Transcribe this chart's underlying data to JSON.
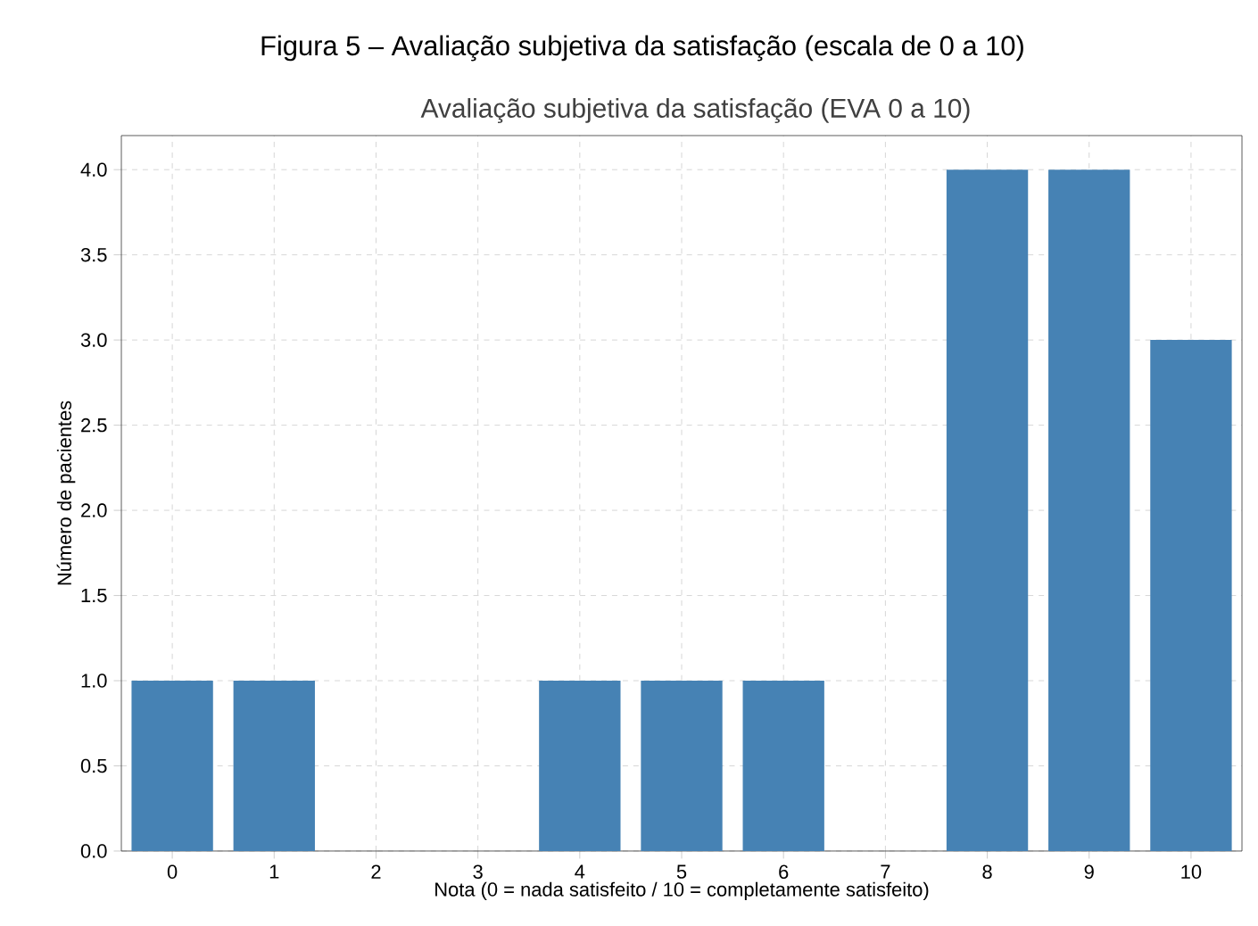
{
  "chart_data": {
    "type": "bar",
    "title": "Figura 5 – Avaliação subjetiva da satisfação (escala de 0 a 10)",
    "subtitle": "Avaliação subjetiva da satisfação (EVA 0 a 10)",
    "xlabel": "Nota (0 = nada satisfeito / 10 = completamente satisfeito)",
    "ylabel": "Número de pacientes",
    "categories": [
      "0",
      "1",
      "2",
      "3",
      "4",
      "5",
      "6",
      "7",
      "8",
      "9",
      "10"
    ],
    "values": [
      1,
      1,
      0,
      0,
      1,
      1,
      1,
      0,
      4,
      4,
      3
    ],
    "color": "#4682b4",
    "ylim": [
      0,
      4.2
    ],
    "yticks": [
      {
        "value": 0,
        "label": "0.0"
      },
      {
        "value": 0.5,
        "label": "0.5"
      },
      {
        "value": 1,
        "label": "1.0"
      },
      {
        "value": 1.5,
        "label": "1.5"
      },
      {
        "value": 2,
        "label": "2.0"
      },
      {
        "value": 2.5,
        "label": "2.5"
      },
      {
        "value": 3,
        "label": "3.0"
      },
      {
        "value": 3.5,
        "label": "3.5"
      },
      {
        "value": 4,
        "label": "4.0"
      }
    ],
    "grid": true
  }
}
